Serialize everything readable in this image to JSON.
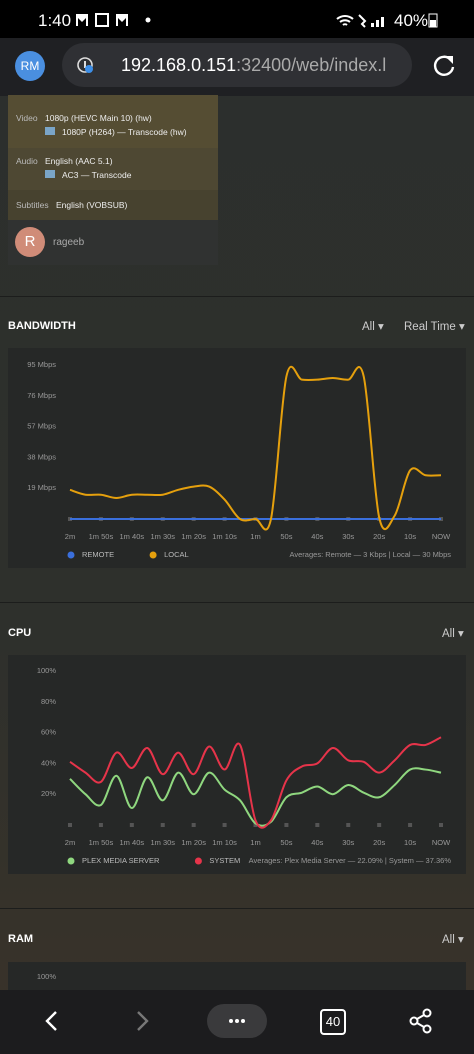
{
  "status_bar": {
    "time": "1:40",
    "battery": "40%"
  },
  "browser": {
    "avatar": "RM",
    "url_host": "192.168.0.151",
    "url_rest": ":32400/web/index.l",
    "tabs": "40"
  },
  "stream": {
    "rows": [
      {
        "label": "Video",
        "lines": [
          "1080p (HEVC Main 10) (hw)",
          "1080P (H264) — Transcode (hw)"
        ]
      },
      {
        "label": "Audio",
        "lines": [
          "English (AAC 5.1)",
          "AC3 — Transcode"
        ]
      },
      {
        "label": "Subtitles",
        "lines": [
          "English (VOBSUB)"
        ]
      }
    ],
    "user": {
      "initial": "R",
      "name": "rageeb"
    }
  },
  "chart_data": [
    {
      "type": "line",
      "title": "BANDWIDTH",
      "dropdowns": [
        "All",
        "Real Time"
      ],
      "x": [
        -120,
        -115,
        -110,
        -105,
        -100,
        -95,
        -90,
        -85,
        -80,
        -75,
        -70,
        -65,
        -60,
        -55,
        -50,
        -45,
        -40,
        -35,
        -30,
        -25,
        -20,
        -15,
        -10,
        -5,
        0
      ],
      "xlim": [
        -120,
        0
      ],
      "xticks": [
        {
          "value": -120,
          "label": "2m"
        },
        {
          "value": -110,
          "label": "1m 50s"
        },
        {
          "value": -100,
          "label": "1m 40s"
        },
        {
          "value": -90,
          "label": "1m 30s"
        },
        {
          "value": -80,
          "label": "1m 20s"
        },
        {
          "value": -70,
          "label": "1m 10s"
        },
        {
          "value": -60,
          "label": "1m"
        },
        {
          "value": -50,
          "label": "50s"
        },
        {
          "value": -40,
          "label": "40s"
        },
        {
          "value": -30,
          "label": "30s"
        },
        {
          "value": -20,
          "label": "20s"
        },
        {
          "value": -10,
          "label": "10s"
        },
        {
          "value": 0,
          "label": "NOW"
        }
      ],
      "ylim": [
        0,
        100
      ],
      "yticks": [
        {
          "value": 19,
          "label": "19 Mbps"
        },
        {
          "value": 38,
          "label": "38 Mbps"
        },
        {
          "value": 57,
          "label": "57 Mbps"
        },
        {
          "value": 76,
          "label": "76 Mbps"
        },
        {
          "value": 95,
          "label": "95 Mbps"
        }
      ],
      "grid": false,
      "series": [
        {
          "name": "REMOTE",
          "color": "#3a6fdc",
          "values": [
            0,
            0,
            0,
            0,
            0,
            0,
            0,
            0,
            0,
            0,
            0,
            0,
            0,
            0,
            0,
            0,
            0,
            0,
            0,
            0,
            0,
            0,
            0,
            0,
            0
          ]
        },
        {
          "name": "LOCAL",
          "color": "#e5a00d",
          "values": [
            18,
            15,
            15,
            13,
            15,
            15,
            15,
            18,
            20,
            20,
            12,
            0,
            0,
            0,
            88,
            86,
            86,
            87,
            86,
            88,
            1,
            2,
            30,
            27,
            27
          ]
        }
      ],
      "note": "Averages: Remote — 3 Kbps | Local — 30 Mbps"
    },
    {
      "type": "line",
      "title": "CPU",
      "dropdowns": [
        "All"
      ],
      "x": [
        -120,
        -115,
        -110,
        -105,
        -100,
        -95,
        -90,
        -85,
        -80,
        -75,
        -70,
        -65,
        -60,
        -55,
        -50,
        -45,
        -40,
        -35,
        -30,
        -25,
        -20,
        -15,
        -10,
        -5,
        0
      ],
      "xlim": [
        -120,
        0
      ],
      "xticks": [
        {
          "value": -120,
          "label": "2m"
        },
        {
          "value": -110,
          "label": "1m 50s"
        },
        {
          "value": -100,
          "label": "1m 40s"
        },
        {
          "value": -90,
          "label": "1m 30s"
        },
        {
          "value": -80,
          "label": "1m 20s"
        },
        {
          "value": -70,
          "label": "1m 10s"
        },
        {
          "value": -60,
          "label": "1m"
        },
        {
          "value": -50,
          "label": "50s"
        },
        {
          "value": -40,
          "label": "40s"
        },
        {
          "value": -30,
          "label": "30s"
        },
        {
          "value": -20,
          "label": "20s"
        },
        {
          "value": -10,
          "label": "10s"
        },
        {
          "value": 0,
          "label": "NOW"
        }
      ],
      "ylim": [
        0,
        100
      ],
      "yticks": [
        {
          "value": 20,
          "label": "20%"
        },
        {
          "value": 40,
          "label": "40%"
        },
        {
          "value": 60,
          "label": "60%"
        },
        {
          "value": 80,
          "label": "80%"
        },
        {
          "value": 100,
          "label": "100%"
        }
      ],
      "grid": false,
      "series": [
        {
          "name": "PLEX MEDIA SERVER",
          "color": "#8fd77f",
          "values": [
            30,
            20,
            13,
            32,
            11,
            31,
            16,
            34,
            20,
            34,
            23,
            16,
            1,
            2,
            18,
            21,
            25,
            20,
            26,
            21,
            18,
            26,
            36,
            36,
            34
          ]
        },
        {
          "name": "SYSTEM",
          "color": "#e6344a",
          "values": [
            41,
            34,
            28,
            47,
            37,
            50,
            33,
            47,
            33,
            51,
            36,
            52,
            3,
            3,
            29,
            38,
            40,
            50,
            42,
            41,
            34,
            42,
            52,
            52,
            57
          ]
        }
      ],
      "note": "Averages: Plex Media Server — 22.09% | System — 37.36%"
    },
    {
      "type": "line",
      "title": "RAM",
      "dropdowns": [
        "All"
      ],
      "ylim": [
        0,
        100
      ],
      "yticks": [
        {
          "value": 100,
          "label": "100%"
        }
      ]
    }
  ]
}
